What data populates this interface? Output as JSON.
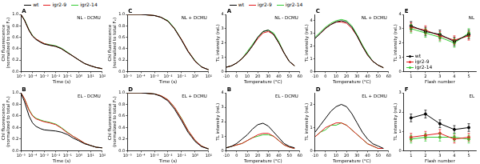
{
  "chart_data": [
    {
      "type": "line",
      "panel": "A",
      "title": "NL - DCMU",
      "x_label": "Time (s)",
      "y_label": "Chl fluorescence (normalized to total Fᵥ)",
      "log": "x",
      "grid": false,
      "legend": "top",
      "xlim": [
        1e-05,
        100
      ],
      "xticks": [
        {
          "value": 1e-05,
          "label": "10⁻⁵"
        },
        {
          "value": 0.0001,
          "label": "10⁻⁴"
        },
        {
          "value": 0.001,
          "label": "10⁻³"
        },
        {
          "value": 0.01,
          "label": "10⁻²"
        },
        {
          "value": 0.1,
          "label": "10⁻¹"
        },
        {
          "value": 1,
          "label": "10⁰"
        },
        {
          "value": 10,
          "label": "10¹"
        },
        {
          "value": 100,
          "label": "10²"
        }
      ],
      "ylim": [
        0,
        1
      ],
      "yticks": [
        {
          "value": 0,
          "label": "0.0"
        },
        0.2,
        0.4,
        0.6,
        0.8,
        {
          "value": 1,
          "label": "1.0"
        }
      ],
      "x": [
        1e-05,
        2e-05,
        5e-05,
        0.0001,
        0.0002,
        0.0005,
        0.001,
        0.003,
        0.01,
        0.03,
        0.1,
        0.3,
        1,
        3,
        10,
        30,
        100
      ],
      "series": [
        {
          "name": "wt",
          "color": "#000000",
          "values": [
            1.0,
            0.9,
            0.72,
            0.62,
            0.56,
            0.51,
            0.48,
            0.46,
            0.44,
            0.4,
            0.33,
            0.27,
            0.2,
            0.14,
            0.1,
            0.07,
            0.05
          ]
        },
        {
          "name": "igr2-9",
          "color": "#e41a1c",
          "values": [
            1.0,
            0.9,
            0.72,
            0.62,
            0.57,
            0.52,
            0.49,
            0.46,
            0.44,
            0.4,
            0.33,
            0.27,
            0.2,
            0.14,
            0.1,
            0.07,
            0.05
          ]
        },
        {
          "name": "igr2-14",
          "color": "#33cc33",
          "values": [
            1.0,
            0.91,
            0.73,
            0.63,
            0.57,
            0.52,
            0.49,
            0.47,
            0.45,
            0.41,
            0.34,
            0.27,
            0.2,
            0.14,
            0.1,
            0.07,
            0.05
          ]
        }
      ]
    },
    {
      "type": "line",
      "panel": "B",
      "title": "EL - DCMU",
      "x_label": "Time (s)",
      "y_label": "Chl fluorescence (normalized to total Fᵥ)",
      "log": "x",
      "grid": false,
      "xlim": [
        1e-05,
        100
      ],
      "xticks": [
        {
          "value": 1e-05,
          "label": "10⁻⁵"
        },
        {
          "value": 0.0001,
          "label": "10⁻⁴"
        },
        {
          "value": 0.001,
          "label": "10⁻³"
        },
        {
          "value": 0.01,
          "label": "10⁻²"
        },
        {
          "value": 0.1,
          "label": "10⁻¹"
        },
        {
          "value": 1,
          "label": "10⁰"
        },
        {
          "value": 10,
          "label": "10¹"
        },
        {
          "value": 100,
          "label": "10²"
        }
      ],
      "ylim": [
        0,
        1
      ],
      "yticks": [
        {
          "value": 0,
          "label": "0.0"
        },
        0.2,
        0.4,
        0.6,
        0.8,
        {
          "value": 1,
          "label": "1.0"
        }
      ],
      "x": [
        1e-05,
        2e-05,
        5e-05,
        0.0001,
        0.0002,
        0.0005,
        0.001,
        0.003,
        0.01,
        0.03,
        0.1,
        0.3,
        1,
        3,
        10,
        30,
        100
      ],
      "series": [
        {
          "name": "wt",
          "color": "#000000",
          "values": [
            1.0,
            0.85,
            0.6,
            0.48,
            0.42,
            0.38,
            0.36,
            0.35,
            0.34,
            0.32,
            0.28,
            0.22,
            0.17,
            0.12,
            0.09,
            0.06,
            0.05
          ]
        },
        {
          "name": "igr2-9",
          "color": "#e41a1c",
          "values": [
            1.0,
            0.9,
            0.7,
            0.6,
            0.55,
            0.52,
            0.5,
            0.48,
            0.45,
            0.39,
            0.31,
            0.25,
            0.19,
            0.13,
            0.09,
            0.06,
            0.05
          ]
        },
        {
          "name": "igr2-14",
          "color": "#33cc33",
          "values": [
            1.0,
            0.9,
            0.71,
            0.61,
            0.56,
            0.53,
            0.51,
            0.49,
            0.46,
            0.4,
            0.32,
            0.25,
            0.19,
            0.13,
            0.09,
            0.06,
            0.05
          ]
        }
      ]
    },
    {
      "type": "line",
      "panel": "C",
      "title": "NL + DCMU",
      "x_label": "Time (s)",
      "y_label": "Chl fluorescence (normalized to total Fᵥ)",
      "log": "x",
      "grid": false,
      "xlim": [
        1e-05,
        10
      ],
      "xticks": [
        {
          "value": 1e-05,
          "label": "10⁻⁵"
        },
        {
          "value": 0.0001,
          "label": "10⁻⁴"
        },
        {
          "value": 0.001,
          "label": "10⁻³"
        },
        {
          "value": 0.01,
          "label": "10⁻²"
        },
        {
          "value": 0.1,
          "label": "10⁻¹"
        },
        {
          "value": 1,
          "label": "10⁰"
        },
        {
          "value": 10,
          "label": "10¹"
        }
      ],
      "ylim": [
        0,
        1
      ],
      "yticks": [
        {
          "value": 0,
          "label": "0.0"
        },
        0.2,
        0.4,
        0.6,
        0.8,
        {
          "value": 1,
          "label": "1.0"
        }
      ],
      "x": [
        1e-05,
        0.0001,
        0.001,
        0.003,
        0.01,
        0.03,
        0.1,
        0.3,
        1,
        3,
        10
      ],
      "series": [
        {
          "name": "wt",
          "color": "#000000",
          "values": [
            1.0,
            1.0,
            0.98,
            0.95,
            0.88,
            0.75,
            0.55,
            0.35,
            0.18,
            0.08,
            0.03
          ]
        },
        {
          "name": "igr2-9",
          "color": "#e41a1c",
          "values": [
            1.0,
            1.0,
            0.98,
            0.95,
            0.88,
            0.75,
            0.56,
            0.36,
            0.18,
            0.08,
            0.03
          ]
        },
        {
          "name": "igr2-14",
          "color": "#33cc33",
          "values": [
            1.0,
            1.0,
            0.98,
            0.95,
            0.89,
            0.76,
            0.56,
            0.36,
            0.19,
            0.08,
            0.03
          ]
        }
      ]
    },
    {
      "type": "line",
      "panel": "D",
      "title": "EL + DCMU",
      "x_label": "Time (s)",
      "y_label": "Chl fluorescence (normalized to total Fᵥ)",
      "log": "x",
      "grid": false,
      "xlim": [
        1e-05,
        10
      ],
      "xticks": [
        {
          "value": 1e-05,
          "label": "10⁻⁵"
        },
        {
          "value": 0.0001,
          "label": "10⁻⁴"
        },
        {
          "value": 0.001,
          "label": "10⁻³"
        },
        {
          "value": 0.01,
          "label": "10⁻²"
        },
        {
          "value": 0.1,
          "label": "10⁻¹"
        },
        {
          "value": 1,
          "label": "10⁰"
        },
        {
          "value": 10,
          "label": "10¹"
        }
      ],
      "ylim": [
        0,
        1
      ],
      "yticks": [
        {
          "value": 0,
          "label": "0.0"
        },
        0.2,
        0.4,
        0.6,
        0.8,
        {
          "value": 1,
          "label": "1.0"
        }
      ],
      "x": [
        1e-05,
        0.0001,
        0.001,
        0.003,
        0.01,
        0.03,
        0.1,
        0.3,
        1,
        3,
        10
      ],
      "series": [
        {
          "name": "wt",
          "color": "#000000",
          "values": [
            1.0,
            1.0,
            0.98,
            0.94,
            0.86,
            0.72,
            0.52,
            0.32,
            0.16,
            0.07,
            0.03
          ]
        },
        {
          "name": "igr2-9",
          "color": "#e41a1c",
          "values": [
            1.0,
            1.0,
            0.98,
            0.95,
            0.88,
            0.75,
            0.55,
            0.35,
            0.18,
            0.08,
            0.03
          ]
        },
        {
          "name": "igr2-14",
          "color": "#33cc33",
          "values": [
            1.0,
            1.0,
            0.98,
            0.95,
            0.88,
            0.75,
            0.56,
            0.35,
            0.18,
            0.08,
            0.03
          ]
        }
      ]
    },
    {
      "type": "line",
      "panel": "A",
      "title": "NL - DCMU",
      "x_label": "Temperature (°C)",
      "y_label": "TL intensity (rel.)",
      "grid": false,
      "legend": "top",
      "xlim": [
        -10,
        60
      ],
      "xticks": [
        -10,
        0,
        10,
        20,
        30,
        40,
        50,
        60
      ],
      "ylim": [
        0,
        4
      ],
      "yticks": [
        0,
        1,
        2,
        3,
        4
      ],
      "x": [
        -10,
        -5,
        0,
        5,
        10,
        15,
        20,
        25,
        30,
        35,
        40,
        45,
        50,
        55
      ],
      "series": [
        {
          "name": "wt",
          "color": "#000000",
          "values": [
            0.3,
            0.4,
            0.6,
            0.9,
            1.3,
            1.8,
            2.4,
            2.8,
            2.9,
            2.6,
            2.0,
            1.3,
            0.7,
            0.4
          ]
        },
        {
          "name": "igr2-9",
          "color": "#e41a1c",
          "values": [
            0.3,
            0.4,
            0.6,
            0.9,
            1.3,
            1.8,
            2.3,
            2.7,
            2.8,
            2.6,
            2.0,
            1.3,
            0.7,
            0.4
          ]
        },
        {
          "name": "igr2-14",
          "color": "#33cc33",
          "values": [
            0.3,
            0.4,
            0.6,
            0.9,
            1.4,
            1.9,
            2.4,
            2.8,
            2.9,
            2.7,
            2.1,
            1.3,
            0.7,
            0.4
          ]
        }
      ]
    },
    {
      "type": "line",
      "panel": "B",
      "title": "EL - DCMU",
      "x_label": "Temperature (°C)",
      "y_label": "TL intensity (rel.)",
      "grid": false,
      "xlim": [
        -10,
        60
      ],
      "xticks": [
        -10,
        0,
        10,
        20,
        30,
        40,
        50,
        60
      ],
      "ylim": [
        0,
        4
      ],
      "yticks": [
        0,
        1,
        2,
        3,
        4
      ],
      "x": [
        -10,
        -5,
        0,
        5,
        10,
        15,
        20,
        25,
        30,
        35,
        40,
        45,
        50,
        55
      ],
      "series": [
        {
          "name": "wt",
          "color": "#000000",
          "values": [
            0.2,
            0.3,
            0.5,
            0.8,
            1.1,
            1.5,
            1.8,
            1.9,
            1.7,
            1.3,
            0.9,
            0.5,
            0.3,
            0.2
          ]
        },
        {
          "name": "igr2-9",
          "color": "#e41a1c",
          "values": [
            0.2,
            0.3,
            0.4,
            0.5,
            0.7,
            0.9,
            1.1,
            1.2,
            1.2,
            1.0,
            0.7,
            0.4,
            0.25,
            0.15
          ]
        },
        {
          "name": "igr2-14",
          "color": "#33cc33",
          "values": [
            0.2,
            0.3,
            0.4,
            0.5,
            0.7,
            0.9,
            1.0,
            1.1,
            1.1,
            1.0,
            0.7,
            0.4,
            0.25,
            0.15
          ]
        }
      ]
    },
    {
      "type": "line",
      "panel": "C",
      "title": "NL + DCMU",
      "x_label": "Temperature (°C)",
      "y_label": "TL intensity (rel.)",
      "grid": false,
      "xlim": [
        -10,
        60
      ],
      "xticks": [
        -10,
        0,
        10,
        20,
        30,
        40,
        50,
        60
      ],
      "ylim": [
        0,
        4.5
      ],
      "yticks": [
        0,
        1,
        2,
        3,
        4
      ],
      "x": [
        -10,
        -5,
        0,
        5,
        10,
        15,
        20,
        25,
        30,
        35,
        40,
        45,
        50,
        55
      ],
      "series": [
        {
          "name": "wt",
          "color": "#000000",
          "values": [
            2.6,
            3.0,
            3.4,
            3.7,
            3.9,
            4.0,
            3.9,
            3.5,
            2.8,
            2.0,
            1.3,
            0.8,
            0.5,
            0.3
          ]
        },
        {
          "name": "igr2-9",
          "color": "#e41a1c",
          "values": [
            2.6,
            3.0,
            3.4,
            3.7,
            3.9,
            3.9,
            3.8,
            3.4,
            2.8,
            2.0,
            1.3,
            0.8,
            0.5,
            0.3
          ]
        },
        {
          "name": "igr2-14",
          "color": "#33cc33",
          "values": [
            2.7,
            3.1,
            3.5,
            3.8,
            4.0,
            4.1,
            4.0,
            3.6,
            2.9,
            2.1,
            1.4,
            0.8,
            0.5,
            0.3
          ]
        }
      ]
    },
    {
      "type": "line",
      "panel": "D",
      "title": "EL + DCMU",
      "x_label": "Temperature (°C)",
      "y_label": "TL intensity (rel.)",
      "grid": false,
      "xlim": [
        -10,
        60
      ],
      "xticks": [
        -10,
        0,
        10,
        20,
        30,
        40,
        50,
        60
      ],
      "ylim": [
        0,
        2.5
      ],
      "yticks": [
        0,
        1,
        2
      ],
      "x": [
        -10,
        -5,
        0,
        5,
        10,
        15,
        20,
        25,
        30,
        35,
        40,
        45,
        50,
        55
      ],
      "series": [
        {
          "name": "wt",
          "color": "#000000",
          "values": [
            0.8,
            1.1,
            1.4,
            1.7,
            1.9,
            2.0,
            1.9,
            1.6,
            1.2,
            0.8,
            0.5,
            0.3,
            0.2,
            0.1
          ]
        },
        {
          "name": "igr2-9",
          "color": "#e41a1c",
          "values": [
            0.6,
            0.8,
            1.0,
            1.1,
            1.2,
            1.2,
            1.1,
            0.9,
            0.7,
            0.5,
            0.3,
            0.2,
            0.1,
            0.1
          ]
        },
        {
          "name": "igr2-14",
          "color": "#33cc33",
          "values": [
            0.6,
            0.8,
            0.9,
            1.1,
            1.1,
            1.2,
            1.1,
            0.9,
            0.7,
            0.5,
            0.3,
            0.2,
            0.1,
            0.1
          ]
        }
      ]
    },
    {
      "type": "line",
      "panel": "E",
      "title": "NL",
      "x_label": "Flash number",
      "y_label": "TL intensity (rel.)",
      "grid": false,
      "legend": "lower left",
      "xlim": [
        0.5,
        5.5
      ],
      "xticks": [
        1,
        2,
        3,
        4,
        5
      ],
      "ylim": [
        0,
        4
      ],
      "yticks": [
        0,
        1,
        2,
        3,
        4
      ],
      "x": [
        1,
        2,
        3,
        4,
        5
      ],
      "series": [
        {
          "name": "wt",
          "color": "#000000",
          "marker": "circle",
          "values": [
            3.2,
            2.8,
            2.6,
            2.1,
            2.6
          ],
          "errors": [
            0.3,
            0.3,
            0.3,
            0.3,
            0.3
          ]
        },
        {
          "name": "igr2-9",
          "color": "#e41a1c",
          "marker": "circle",
          "values": [
            3.1,
            2.9,
            2.5,
            2.2,
            2.5
          ],
          "errors": [
            0.3,
            0.3,
            0.3,
            0.3,
            0.3
          ]
        },
        {
          "name": "igr2-14",
          "color": "#33cc33",
          "marker": "circle",
          "values": [
            3.0,
            2.7,
            2.4,
            2.0,
            2.7
          ],
          "errors": [
            0.3,
            0.3,
            0.3,
            0.3,
            0.3
          ]
        }
      ]
    },
    {
      "type": "line",
      "panel": "F",
      "title": "EL",
      "x_label": "Flash number",
      "y_label": "TL intensity (rel.)",
      "grid": false,
      "xlim": [
        0.5,
        5.5
      ],
      "xticks": [
        1,
        2,
        3,
        4,
        5
      ],
      "ylim": [
        0,
        3
      ],
      "yticks": [
        0,
        1,
        2,
        3
      ],
      "x": [
        1,
        2,
        3,
        4,
        5
      ],
      "series": [
        {
          "name": "wt",
          "color": "#000000",
          "marker": "circle",
          "values": [
            1.7,
            1.9,
            1.4,
            1.1,
            1.2
          ],
          "errors": [
            0.2,
            0.2,
            0.2,
            0.2,
            0.2
          ]
        },
        {
          "name": "igr2-9",
          "color": "#e41a1c",
          "marker": "circle",
          "values": [
            0.7,
            0.8,
            0.9,
            0.6,
            0.7
          ],
          "errors": [
            0.2,
            0.2,
            0.2,
            0.2,
            0.2
          ]
        },
        {
          "name": "igr2-14",
          "color": "#33cc33",
          "marker": "circle",
          "values": [
            0.6,
            0.7,
            0.7,
            0.7,
            0.6
          ],
          "errors": [
            0.2,
            0.2,
            0.2,
            0.2,
            0.2
          ]
        }
      ]
    }
  ]
}
